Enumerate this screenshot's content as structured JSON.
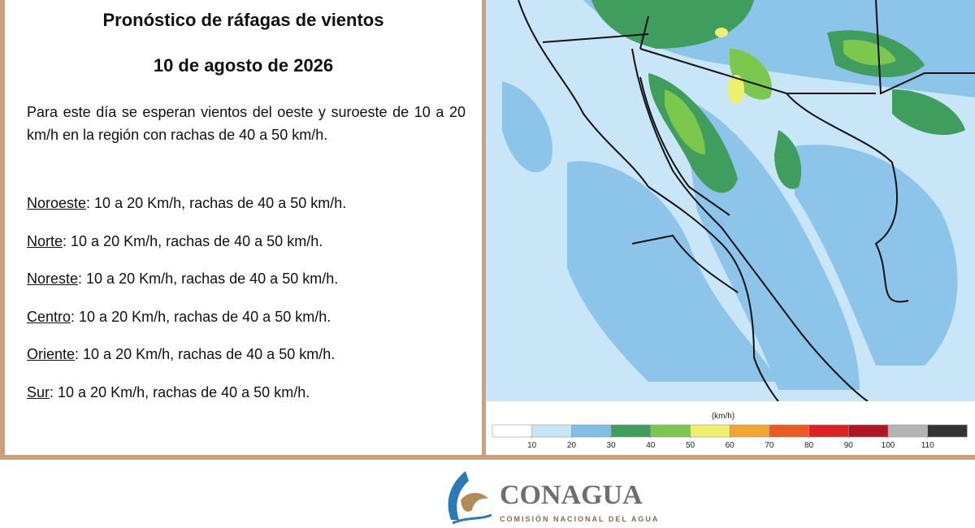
{
  "header": {
    "title": "Pronóstico de ráfagas de vientos",
    "date": "10 de agosto de 2026"
  },
  "intro": "Para este día se esperan vientos del oeste y suroeste de 10 a 20 km/h en la región con rachas de 40 a 50 km/h.",
  "regions": [
    {
      "name": "Noroeste",
      "text": ":  10 a 20 Km/h, rachas de 40 a 50 km/h."
    },
    {
      "name": "Norte",
      "text": ": 10 a 20 Km/h, rachas de 40 a 50 km/h."
    },
    {
      "name": "Noreste",
      "text": ": 10 a 20 Km/h, rachas de 40 a 50 km/h."
    },
    {
      "name": "Centro",
      "text": ":  10 a 20 Km/h, rachas de 40 a 50 km/h."
    },
    {
      "name": "Oriente",
      "text": ":  10 a 20 Km/h, rachas de 40 a 50 km/h."
    },
    {
      "name": "Sur",
      "text": ":  10 a 20 Km/h, rachas de 40 a 50 km/h."
    }
  ],
  "legend": {
    "unit": "(km/h)",
    "ticks": [
      10,
      20,
      30,
      40,
      50,
      60,
      70,
      80,
      90,
      100,
      110
    ],
    "colors": [
      "#ffffff",
      "#c6e6f8",
      "#80bde8",
      "#3f9e5e",
      "#7cc84e",
      "#eef06a",
      "#f4a431",
      "#ec5a23",
      "#dd2222",
      "#b01520",
      "#b4b4b4",
      "#333333"
    ]
  },
  "logo": {
    "name": "CONAGUA",
    "subtitle": "COMISIÓN NACIONAL DEL AGUA"
  }
}
